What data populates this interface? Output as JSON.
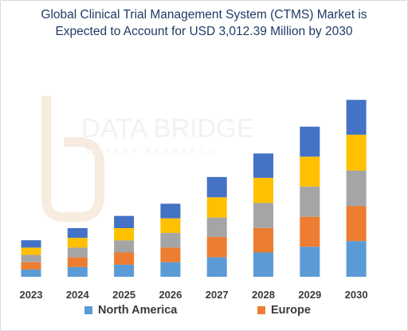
{
  "chart_data": {
    "type": "bar",
    "stacked": true,
    "title": "Global Clinical Trial Management System (CTMS) Market is Expected to Account for USD 3,012.39 Million by 2030",
    "title_lines": [
      "Global Clinical Trial Management System (CTMS) Market is",
      "Expected to Account for USD 3,012.39 Million by 2030"
    ],
    "xlabel": "",
    "ylabel": "",
    "categories": [
      "2023",
      "2024",
      "2025",
      "2026",
      "2027",
      "2028",
      "2029",
      "2030"
    ],
    "series": [
      {
        "name": "North America",
        "color": "#5b9bd5",
        "values": [
          9,
          12,
          15,
          18,
          24,
          30,
          37,
          44
        ]
      },
      {
        "name": "Europe",
        "color": "#ed7d31",
        "values": [
          9,
          12,
          15,
          18,
          25,
          30,
          37,
          43
        ]
      },
      {
        "series_label": "",
        "color": "#a5a5a5",
        "values": [
          9,
          12,
          15,
          18,
          24,
          31,
          37,
          44
        ]
      },
      {
        "series_label": "",
        "color": "#ffc000",
        "values": [
          9,
          12,
          15,
          18,
          25,
          31,
          37,
          44
        ]
      },
      {
        "series_label": "",
        "color": "#4472c4",
        "values": [
          9,
          12,
          15,
          18,
          25,
          30,
          37,
          43
        ]
      }
    ],
    "ylim": [
      0,
      230
    ],
    "y_axis_visible": false,
    "grid": false,
    "legend_position": "bottom"
  },
  "watermark": {
    "line1": "DATA BRIDGE",
    "line2": "MARKET RESEARCH"
  }
}
